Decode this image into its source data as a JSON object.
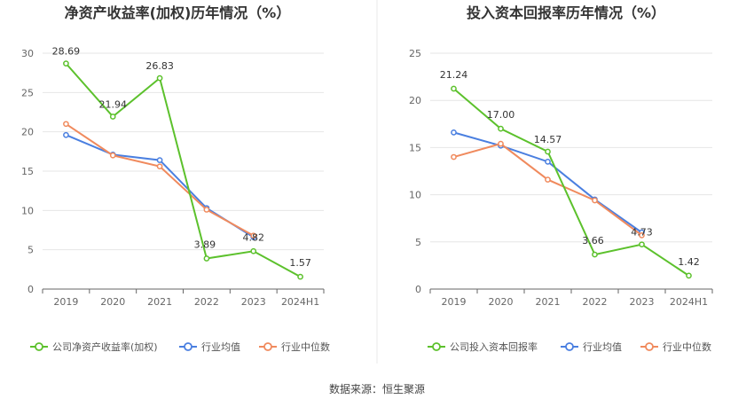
{
  "source_label": "数据来源：恒生聚源",
  "colors": {
    "company": "#5cc12c",
    "average": "#4a7fe0",
    "median": "#f08a5d",
    "grid": "#e6e6e6",
    "axis": "#666666",
    "divider": "#e8e8e8"
  },
  "chart_data": [
    {
      "type": "line",
      "title": "净资产收益率(加权)历年情况（%）",
      "categories": [
        "2019",
        "2020",
        "2021",
        "2022",
        "2023",
        "2024H1"
      ],
      "ylim": [
        0,
        30
      ],
      "yticks": [
        0,
        5,
        10,
        15,
        20,
        25,
        30
      ],
      "grid": true,
      "legend_position": "bottom",
      "series": [
        {
          "name": "公司净资产收益率(加权)",
          "color_key": "company",
          "values": [
            28.69,
            21.94,
            26.83,
            3.89,
            4.82,
            1.57
          ],
          "labels": [
            "28.69",
            "21.94",
            "26.83",
            "3.89",
            "4.82",
            "1.57"
          ]
        },
        {
          "name": "行业均值",
          "color_key": "average",
          "values": [
            19.6,
            17.1,
            16.4,
            10.3,
            6.6,
            null
          ]
        },
        {
          "name": "行业中位数",
          "color_key": "median",
          "values": [
            21.0,
            17.0,
            15.6,
            10.1,
            6.8,
            null
          ]
        }
      ]
    },
    {
      "type": "line",
      "title": "投入资本回报率历年情况（%）",
      "categories": [
        "2019",
        "2020",
        "2021",
        "2022",
        "2023",
        "2024H1"
      ],
      "ylim": [
        0,
        25
      ],
      "yticks": [
        0,
        5,
        10,
        15,
        20,
        25
      ],
      "grid": true,
      "legend_position": "bottom",
      "series": [
        {
          "name": "公司投入资本回报率",
          "color_key": "company",
          "values": [
            21.24,
            17.0,
            14.57,
            3.66,
            4.73,
            1.42
          ],
          "labels": [
            "21.24",
            "17.00",
            "14.57",
            "3.66",
            "4.73",
            "1.42"
          ]
        },
        {
          "name": "行业均值",
          "color_key": "average",
          "values": [
            16.6,
            15.2,
            13.5,
            9.5,
            6.0,
            null
          ]
        },
        {
          "name": "行业中位数",
          "color_key": "median",
          "values": [
            14.0,
            15.4,
            11.6,
            9.4,
            5.7,
            null
          ]
        }
      ]
    }
  ]
}
